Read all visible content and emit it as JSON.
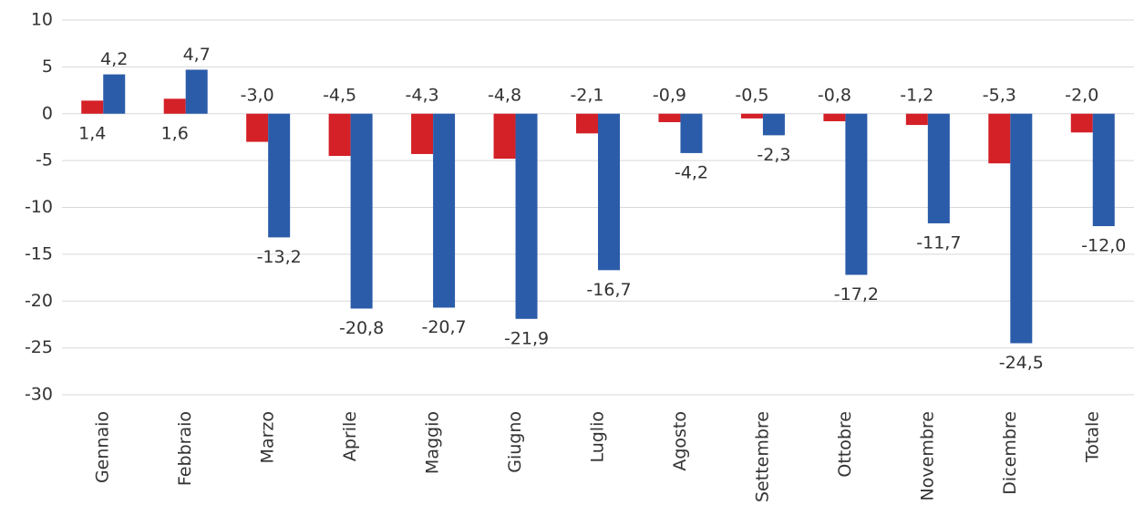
{
  "chart_data": {
    "type": "bar",
    "categories": [
      "Gennaio",
      "Febbraio",
      "Marzo",
      "Aprile",
      "Maggio",
      "Giugno",
      "Luglio",
      "Agosto",
      "Settembre",
      "Ottobre",
      "Novembre",
      "Dicembre",
      "Totale"
    ],
    "series": [
      {
        "color": "#d42027",
        "values": [
          1.4,
          1.6,
          -3.0,
          -4.5,
          -4.3,
          -4.8,
          -2.1,
          -0.9,
          -0.5,
          -0.8,
          -1.2,
          -5.3,
          -2.0
        ],
        "value_labels": [
          "1,4",
          "1,6",
          "-3,0",
          "-4,5",
          "-4,3",
          "-4,8",
          "-2,1",
          "-0,9",
          "-0,5",
          "-0,8",
          "-1,2",
          "-5,3",
          "-2,0"
        ]
      },
      {
        "color": "#2b5ca9",
        "values": [
          4.2,
          4.7,
          -13.2,
          -20.8,
          -20.7,
          -21.9,
          -16.7,
          -4.2,
          -2.3,
          -17.2,
          -11.7,
          -24.5,
          -12.0
        ],
        "value_labels": [
          "4,2",
          "4,7",
          "-13,2",
          "-20,8",
          "-20,7",
          "-21,9",
          "-16,7",
          "-4,2",
          "-2,3",
          "-17,2",
          "-11,7",
          "-24,5",
          "-12,0"
        ]
      }
    ],
    "ylim": [
      -30,
      10
    ],
    "yticks": [
      -30,
      -25,
      -20,
      -15,
      -10,
      -5,
      0,
      5,
      10
    ],
    "grid": true
  }
}
